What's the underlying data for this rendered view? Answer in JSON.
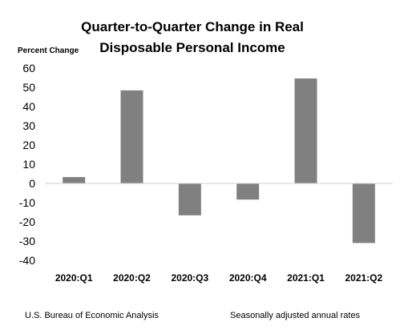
{
  "chart_data": {
    "type": "bar",
    "title_line1": "Quarter-to-Quarter Change in Real",
    "title_line2": "Disposable Personal Income",
    "ylabel": "Percent Change",
    "xlabel": "",
    "categories": [
      "2020:Q1",
      "2020:Q2",
      "2020:Q3",
      "2020:Q4",
      "2021:Q1",
      "2021:Q2"
    ],
    "values": [
      3.3,
      48.4,
      -16.6,
      -8.4,
      54.6,
      -31.0
    ],
    "ylim": [
      -40,
      60
    ],
    "yticks": [
      60,
      50,
      40,
      30,
      20,
      10,
      0,
      -10,
      -20,
      -30,
      -40
    ],
    "grid": false,
    "bar_color": "#808080"
  },
  "footer": {
    "source": "U.S. Bureau of Economic Analysis",
    "note": "Seasonally adjusted annual rates"
  }
}
